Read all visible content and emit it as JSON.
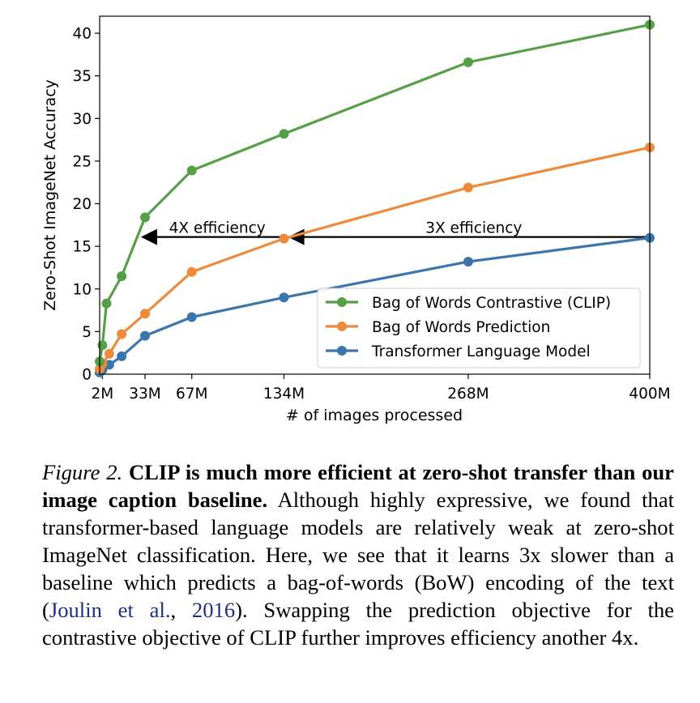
{
  "chart_data": {
    "type": "line",
    "xlabel": "# of images processed",
    "ylabel": "Zero-Shot ImageNet Accuracy",
    "xlim": [
      0,
      400
    ],
    "ylim": [
      0,
      42
    ],
    "x_ticks": [
      2,
      33,
      67,
      134,
      268,
      400
    ],
    "x_tick_labels": [
      "2M",
      "33M",
      "67M",
      "134M",
      "268M",
      "400M"
    ],
    "y_ticks": [
      0,
      5,
      10,
      15,
      20,
      25,
      30,
      35,
      40
    ],
    "y_tick_labels": [
      "0",
      "5",
      "10",
      "15",
      "20",
      "25",
      "30",
      "35",
      "40"
    ],
    "legend_position": "lower-right",
    "series": [
      {
        "name": "Bag of Words Contrastive (CLIP)",
        "color": "#55a047",
        "x": [
          0,
          2,
          5,
          16,
          33,
          67,
          134,
          268,
          400
        ],
        "y": [
          1.5,
          3.4,
          8.3,
          11.5,
          18.4,
          23.9,
          28.2,
          36.6,
          41.0
        ]
      },
      {
        "name": "Bag of Words Prediction",
        "color": "#ee8a3a",
        "x": [
          0,
          2,
          7,
          16,
          33,
          67,
          134,
          268,
          400
        ],
        "y": [
          0.6,
          1.2,
          2.4,
          4.7,
          7.1,
          12.0,
          15.9,
          21.9,
          26.6
        ]
      },
      {
        "name": "Transformer Language Model",
        "color": "#3a76ad",
        "x": [
          0,
          2,
          7,
          16,
          33,
          67,
          134,
          268,
          400
        ],
        "y": [
          0.2,
          0.5,
          1.1,
          2.1,
          4.5,
          6.7,
          9.0,
          13.2,
          16.0
        ]
      }
    ],
    "annotations": [
      {
        "text": "4X efficiency",
        "from_x": 134,
        "to_x": 30,
        "y": 16
      },
      {
        "text": "3X efficiency",
        "from_x": 400,
        "to_x": 137,
        "y": 16
      }
    ]
  },
  "caption": {
    "figure_label": "Figure 2.",
    "bold_text": "CLIP is much more efficient at zero-shot transfer than our image caption baseline.",
    "text_part1": "Although highly expressive, we found that transformer-based language models are relatively weak at zero-shot ImageNet classification. Here, we see that it learns 3x slower than a baseline which predicts a bag-of-words (BoW) encoding of the text (",
    "citation_authors": "Joulin et al.",
    "citation_sep": ", ",
    "citation_year": "2016",
    "text_part2": "). Swapping the prediction objective for the contrastive objective of CLIP further improves efficiency another 4x."
  }
}
